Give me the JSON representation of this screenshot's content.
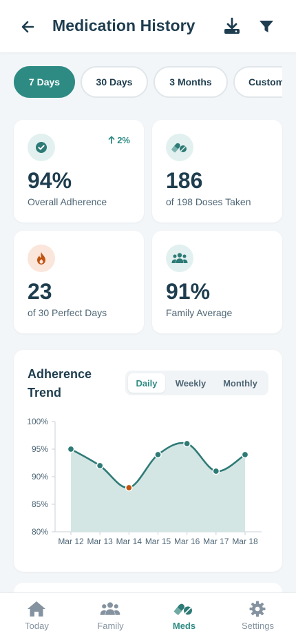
{
  "header": {
    "title": "Medication History",
    "icons": {
      "back": "arrow-left-icon",
      "download": "download-icon",
      "filter": "filter-icon"
    }
  },
  "range_chips": [
    {
      "label": "7 Days",
      "selected": true
    },
    {
      "label": "30 Days",
      "selected": false
    },
    {
      "label": "3 Months",
      "selected": false
    },
    {
      "label": "Custom",
      "selected": false
    }
  ],
  "stats": [
    {
      "value": "94%",
      "label": "Overall Adherence",
      "trend": "2%",
      "icon": "check-circle-icon"
    },
    {
      "value": "186",
      "label": "of 198 Doses Taken",
      "icon": "pills-icon"
    },
    {
      "value": "23",
      "label": "of 30 Perfect Days",
      "icon": "flame-icon"
    },
    {
      "value": "91%",
      "label": "Family Average",
      "icon": "family-icon"
    }
  ],
  "adherence_chart": {
    "title": "Adherence Trend",
    "granularity_options": [
      "Daily",
      "Weekly",
      "Monthly"
    ],
    "selected_granularity": "Daily"
  },
  "chart_data": {
    "type": "area",
    "title": "Adherence Trend",
    "xlabel": "",
    "ylabel": "",
    "categories": [
      "Mar 12",
      "Mar 13",
      "Mar 14",
      "Mar 15",
      "Mar 16",
      "Mar 17",
      "Mar 18"
    ],
    "values": [
      95,
      92,
      88,
      94,
      96,
      91,
      94
    ],
    "ylim": [
      80,
      100
    ],
    "yticks": [
      100,
      95,
      90,
      85,
      80
    ],
    "ytick_suffix": "%",
    "highlight_index": 2,
    "line_color": "#2e7a76",
    "fill_color": "#d3e6e4",
    "highlight_color": "#c0530f",
    "grid": false
  },
  "tabbar": [
    {
      "label": "Today",
      "icon": "home-icon",
      "active": false
    },
    {
      "label": "Family",
      "icon": "family-icon",
      "active": false
    },
    {
      "label": "Meds",
      "icon": "pills-icon",
      "active": true
    },
    {
      "label": "Settings",
      "icon": "gear-icon",
      "active": false
    }
  ],
  "colors": {
    "accent": "#2e8b84",
    "text": "#1e3d4f",
    "muted": "#4e6676",
    "warning": "#c0530f"
  }
}
